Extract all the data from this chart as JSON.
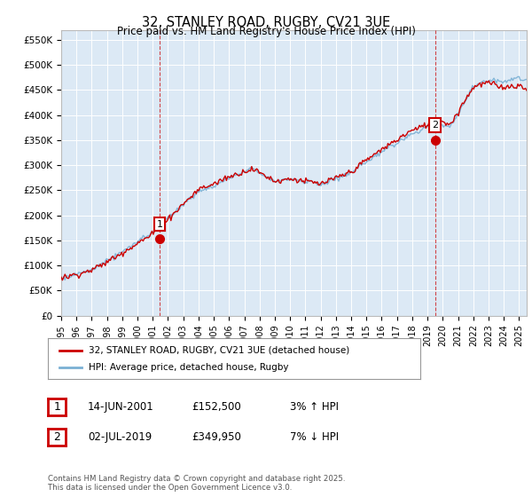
{
  "title": "32, STANLEY ROAD, RUGBY, CV21 3UE",
  "subtitle": "Price paid vs. HM Land Registry's House Price Index (HPI)",
  "ylabel_ticks": [
    "£0",
    "£50K",
    "£100K",
    "£150K",
    "£200K",
    "£250K",
    "£300K",
    "£350K",
    "£400K",
    "£450K",
    "£500K",
    "£550K"
  ],
  "ytick_values": [
    0,
    50000,
    100000,
    150000,
    200000,
    250000,
    300000,
    350000,
    400000,
    450000,
    500000,
    550000
  ],
  "ylim": [
    0,
    570000
  ],
  "xlim_start": 1995.0,
  "xlim_end": 2025.5,
  "bg_color": "#dce9f5",
  "sale1_year": 2001.45,
  "sale1_price": 152500,
  "sale2_year": 2019.5,
  "sale2_price": 349950,
  "vline_color": "#cc0000",
  "marker_color": "#cc0000",
  "hpi_line_color": "#7ab0d4",
  "price_line_color": "#cc0000",
  "legend_label1": "32, STANLEY ROAD, RUGBY, CV21 3UE (detached house)",
  "legend_label2": "HPI: Average price, detached house, Rugby",
  "annotation1_date": "14-JUN-2001",
  "annotation1_price": "£152,500",
  "annotation1_pct": "3% ↑ HPI",
  "annotation2_date": "02-JUL-2019",
  "annotation2_price": "£349,950",
  "annotation2_pct": "7% ↓ HPI",
  "footer": "Contains HM Land Registry data © Crown copyright and database right 2025.\nThis data is licensed under the Open Government Licence v3.0.",
  "xtick_years": [
    1995,
    1996,
    1997,
    1998,
    1999,
    2000,
    2001,
    2002,
    2003,
    2004,
    2005,
    2006,
    2007,
    2008,
    2009,
    2010,
    2011,
    2012,
    2013,
    2014,
    2015,
    2016,
    2017,
    2018,
    2019,
    2020,
    2021,
    2022,
    2023,
    2024,
    2025
  ]
}
